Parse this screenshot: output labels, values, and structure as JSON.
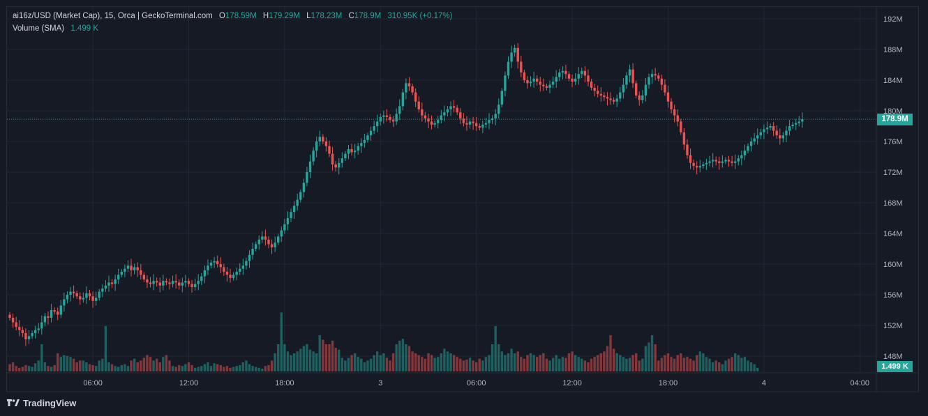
{
  "legend": {
    "title": "ai16z/USD (Market Cap), 15, Orca | GeckoTerminal.com",
    "o_key": "O",
    "o_val": "178.59M",
    "h_key": "H",
    "h_val": "179.29M",
    "l_key": "L",
    "l_val": "178.23M",
    "c_key": "C",
    "c_val": "178.9M",
    "change": "310.95K (+0.17%)",
    "volume_label": "Volume (SMA)",
    "volume_val": "1.499 K"
  },
  "price_badge": "178.9M",
  "volume_badge": "1.499 K",
  "brand": "TradingView",
  "colors": {
    "up": "#26a69a",
    "down": "#ef5350",
    "grid": "#232734",
    "text": "#b2b5be"
  },
  "chart_data": {
    "type": "candlestick",
    "y_unit": "USD (Market Cap)",
    "ylim": [
      144,
      193
    ],
    "yticks": [
      "192M",
      "188M",
      "184M",
      "180M",
      "176M",
      "172M",
      "168M",
      "164M",
      "160M",
      "156M",
      "152M",
      "148M"
    ],
    "ytick_values": [
      192,
      188,
      184,
      180,
      176,
      172,
      168,
      164,
      160,
      156,
      152,
      148
    ],
    "xticks": [
      "06:00",
      "12:00",
      "18:00",
      "3",
      "06:00",
      "12:00",
      "18:00",
      "4",
      "04:00"
    ],
    "xtick_index": [
      26,
      56,
      86,
      116,
      146,
      176,
      206,
      236,
      266
    ],
    "last_price": 178.9,
    "last_volume": "1.499 K",
    "close": [
      153,
      152.4,
      151.8,
      151.4,
      151,
      150.2,
      150.6,
      151,
      151.4,
      151.6,
      152.4,
      153.2,
      153,
      154,
      153.8,
      153.4,
      154.6,
      155.4,
      156,
      156.4,
      156.2,
      155.8,
      155.4,
      155.6,
      156.2,
      155.8,
      155.2,
      155.6,
      156.4,
      156.8,
      157.2,
      157.6,
      157.4,
      158,
      158.6,
      159,
      159.4,
      159.8,
      159.2,
      159.6,
      159.2,
      158.6,
      158,
      157.6,
      157.4,
      157.8,
      157.6,
      157.2,
      157.8,
      157.6,
      157.4,
      157.8,
      157.6,
      157.2,
      157.6,
      157.8,
      157.4,
      157,
      157.4,
      157.8,
      158.4,
      159.2,
      159.8,
      160.2,
      160.4,
      160,
      159.6,
      159,
      158.6,
      158.2,
      158.6,
      159,
      159.4,
      159.8,
      160.4,
      161.2,
      162,
      162.6,
      163.2,
      163.6,
      163.2,
      162.6,
      162.2,
      162.8,
      163.6,
      164.4,
      165.2,
      166,
      166.8,
      167.6,
      168.4,
      169.4,
      170.6,
      172,
      173.4,
      174.8,
      176,
      176.6,
      176,
      175.4,
      174.4,
      173,
      172.6,
      173.2,
      173.8,
      174.4,
      175,
      174.6,
      174.8,
      175.4,
      175.8,
      176.2,
      176.8,
      177.4,
      178,
      178.6,
      179.2,
      179.4,
      179.2,
      178.8,
      178.6,
      179.6,
      180.6,
      182.4,
      183.6,
      183.2,
      182.4,
      181.2,
      180.2,
      179.4,
      179,
      178.6,
      178.2,
      178.4,
      178.8,
      179.4,
      179.8,
      180.2,
      180.6,
      180.4,
      179.8,
      179,
      178.4,
      178.2,
      178.6,
      178.4,
      178,
      177.8,
      178.2,
      178.4,
      178.8,
      179,
      179.6,
      180.8,
      182.6,
      184.6,
      186.4,
      187.6,
      188.2,
      186.4,
      185,
      184,
      183.6,
      183.8,
      184.2,
      183.8,
      183.4,
      183.2,
      183,
      183.4,
      183.8,
      184.4,
      185,
      185.2,
      184.8,
      184.2,
      183.8,
      184.2,
      184.8,
      185.2,
      184.6,
      183.8,
      183,
      182.6,
      182.2,
      182,
      181.8,
      181.6,
      181.4,
      181.2,
      181.6,
      182.4,
      183.4,
      184.6,
      185.4,
      183.6,
      182,
      181.4,
      182,
      183.4,
      184.4,
      184.8,
      184.6,
      184.2,
      183.4,
      182.4,
      181.2,
      180.2,
      179.4,
      178.6,
      177.2,
      175.6,
      174.2,
      173.2,
      172.8,
      172.6,
      172.8,
      173,
      173.2,
      173.4,
      173.6,
      173.4,
      173.2,
      173.4,
      173.6,
      173.4,
      173.2,
      173.4,
      173.8,
      174.2,
      174.8,
      175.4,
      176,
      176.4,
      176.8,
      177.2,
      177.6,
      177.8,
      178,
      177.4,
      176.8,
      176.4,
      176.8,
      177.4,
      178,
      178.2,
      178.4,
      178.6,
      178.9
    ],
    "volume_ratio": [
      0.08,
      0.1,
      0.06,
      0.04,
      0.05,
      0.07,
      0.06,
      0.05,
      0.09,
      0.12,
      0.3,
      0.1,
      0.06,
      0.05,
      0.07,
      0.2,
      0.16,
      0.18,
      0.17,
      0.16,
      0.14,
      0.1,
      0.12,
      0.12,
      0.1,
      0.08,
      0.07,
      0.06,
      0.12,
      0.14,
      0.5,
      0.1,
      0.08,
      0.06,
      0.05,
      0.07,
      0.08,
      0.06,
      0.12,
      0.14,
      0.1,
      0.12,
      0.15,
      0.18,
      0.16,
      0.12,
      0.14,
      0.1,
      0.16,
      0.18,
      0.12,
      0.06,
      0.05,
      0.07,
      0.06,
      0.08,
      0.1,
      0.07,
      0.04,
      0.05,
      0.06,
      0.08,
      0.1,
      0.06,
      0.09,
      0.08,
      0.07,
      0.05,
      0.06,
      0.04,
      0.05,
      0.06,
      0.07,
      0.1,
      0.12,
      0.08,
      0.06,
      0.05,
      0.04,
      0.03,
      0.06,
      0.07,
      0.12,
      0.2,
      0.3,
      0.65,
      0.3,
      0.22,
      0.18,
      0.2,
      0.22,
      0.25,
      0.28,
      0.3,
      0.24,
      0.22,
      0.2,
      0.4,
      0.35,
      0.3,
      0.3,
      0.34,
      0.26,
      0.24,
      0.15,
      0.12,
      0.15,
      0.18,
      0.2,
      0.16,
      0.14,
      0.1,
      0.12,
      0.14,
      0.18,
      0.22,
      0.18,
      0.2,
      0.15,
      0.12,
      0.2,
      0.3,
      0.34,
      0.36,
      0.3,
      0.28,
      0.22,
      0.2,
      0.18,
      0.16,
      0.14,
      0.2,
      0.18,
      0.15,
      0.16,
      0.2,
      0.25,
      0.22,
      0.2,
      0.18,
      0.16,
      0.14,
      0.12,
      0.13,
      0.15,
      0.12,
      0.1,
      0.14,
      0.12,
      0.16,
      0.18,
      0.3,
      0.5,
      0.3,
      0.22,
      0.18,
      0.2,
      0.25,
      0.2,
      0.22,
      0.16,
      0.14,
      0.18,
      0.2,
      0.18,
      0.16,
      0.18,
      0.2,
      0.14,
      0.12,
      0.15,
      0.18,
      0.14,
      0.16,
      0.15,
      0.2,
      0.22,
      0.18,
      0.16,
      0.14,
      0.12,
      0.1,
      0.14,
      0.16,
      0.18,
      0.2,
      0.22,
      0.28,
      0.4,
      0.25,
      0.2,
      0.18,
      0.16,
      0.14,
      0.15,
      0.18,
      0.2,
      0.12,
      0.14,
      0.28,
      0.32,
      0.4,
      0.3,
      0.12,
      0.15,
      0.18,
      0.2,
      0.16,
      0.14,
      0.18,
      0.2,
      0.15,
      0.16,
      0.14,
      0.12,
      0.18,
      0.22,
      0.2,
      0.16,
      0.14,
      0.1,
      0.12,
      0.1,
      0.08,
      0.12,
      0.14,
      0.16,
      0.2,
      0.18,
      0.15,
      0.16,
      0.12,
      0.1,
      0.08,
      0.04
    ]
  }
}
